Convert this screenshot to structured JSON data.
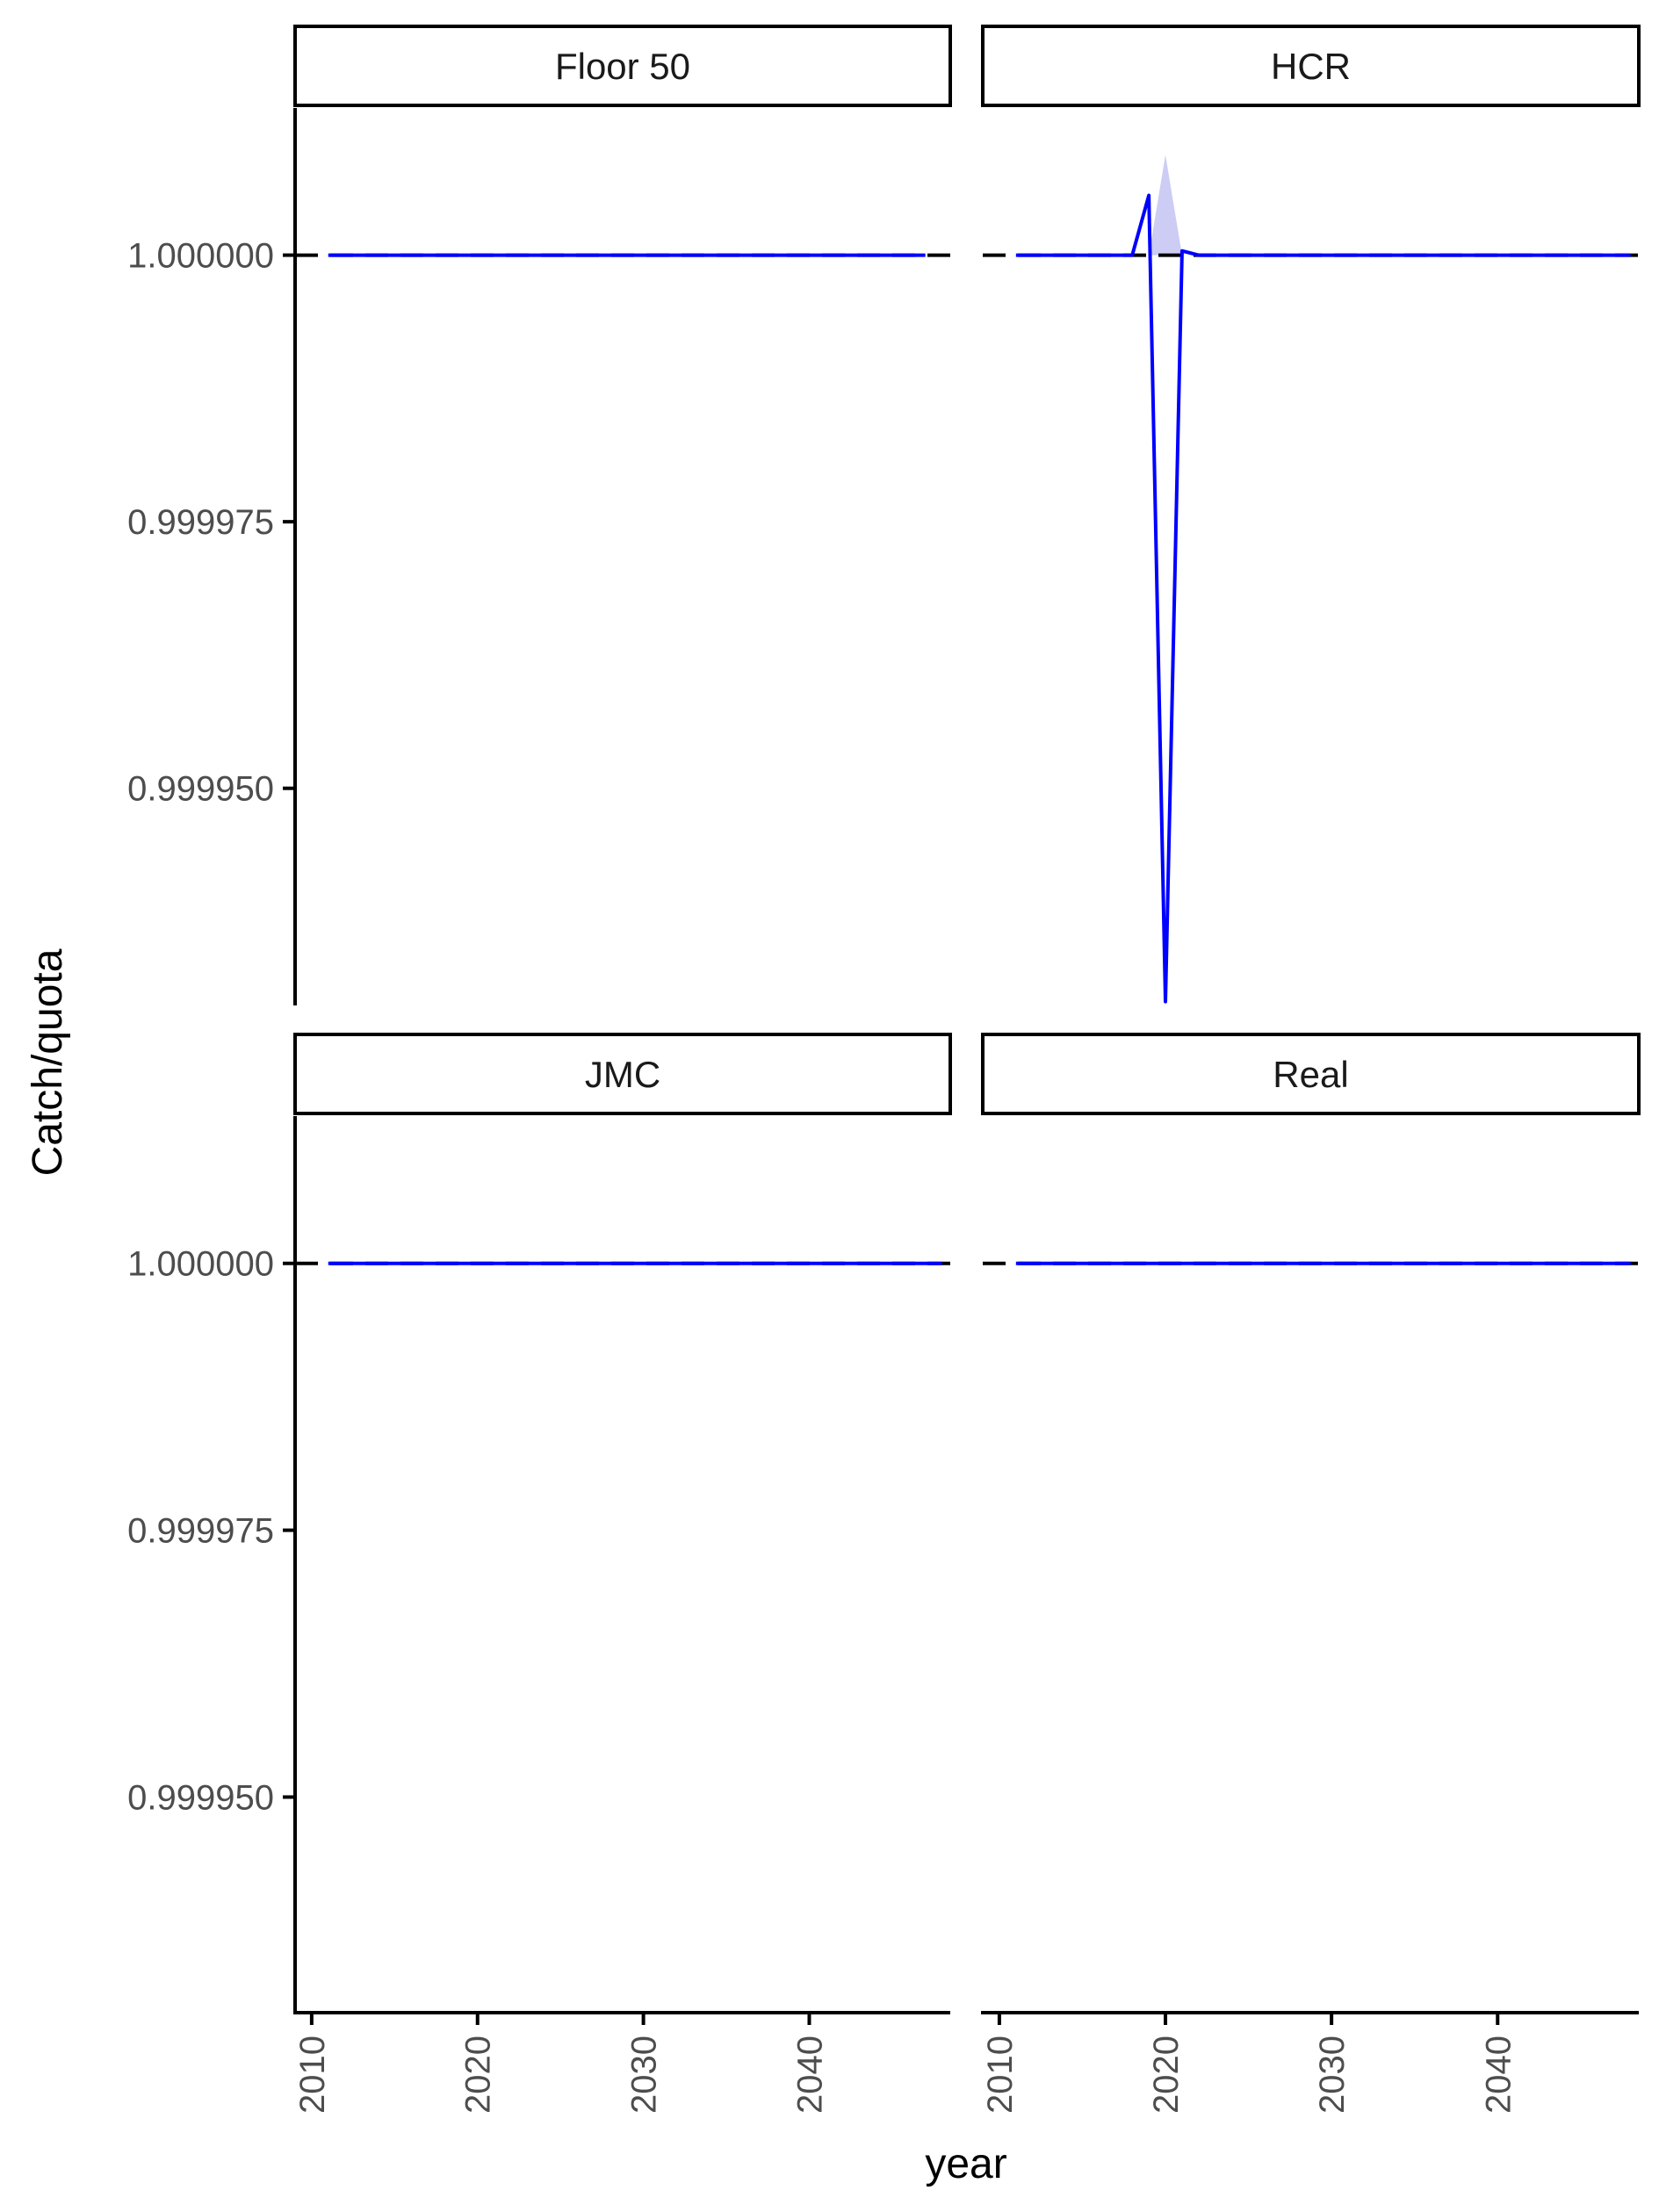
{
  "chart_data": {
    "type": "line",
    "layout": "facet_wrap",
    "xlabel": "year",
    "ylabel": "Catch/quota",
    "xlim": [
      2009,
      2048.5
    ],
    "ylim": [
      0.9999298,
      1.0000138
    ],
    "x_ticks": [
      2010,
      2020,
      2030,
      2040
    ],
    "y_ticks": [
      0.99995,
      0.999975,
      1.0
    ],
    "y_tick_labels": [
      "0.999950",
      "0.999975",
      "1.000000"
    ],
    "grid": false,
    "colors": {
      "mean_line": "#0000ff",
      "ribbon": "#ccccf5",
      "reference_line": "#000000",
      "median_line": "#ff0000"
    },
    "panels": [
      {
        "strip": "Floor 50",
        "x": [
          2011,
          2047
        ],
        "reference": [
          1.0,
          1.0
        ],
        "mean": [
          1.0,
          1.0
        ],
        "ribbon_low": [
          1.0,
          1.0
        ],
        "ribbon_high": [
          1.0,
          1.0
        ]
      },
      {
        "strip": "HCR",
        "x": [
          2011,
          2018,
          2019,
          2020,
          2021,
          2022,
          2048
        ],
        "reference": [
          1.0,
          1.0,
          1.0,
          1.0,
          1.0,
          1.0,
          1.0
        ],
        "mean": [
          1.0,
          1.0,
          1.0000056,
          0.99993,
          1.0000004,
          1.0,
          1.0
        ],
        "ribbon_low": [
          1.0,
          1.0,
          1.0,
          1.0,
          1.0,
          1.0,
          1.0
        ],
        "ribbon_high": [
          1.0,
          1.0,
          1.0,
          1.0000094,
          1.0,
          1.0,
          1.0
        ]
      },
      {
        "strip": "JMC",
        "x": [
          2011,
          2048
        ],
        "reference": [
          1.0,
          1.0
        ],
        "mean": [
          1.0,
          1.0
        ],
        "ribbon_low": [
          1.0,
          1.0
        ],
        "ribbon_high": [
          1.0,
          1.0
        ]
      },
      {
        "strip": "Real",
        "x": [
          2011,
          2048
        ],
        "reference": [
          1.0,
          1.0
        ],
        "mean": [
          1.0,
          1.0
        ],
        "ribbon_low": [
          1.0,
          1.0
        ],
        "ribbon_high": [
          1.0,
          1.0
        ]
      }
    ]
  }
}
